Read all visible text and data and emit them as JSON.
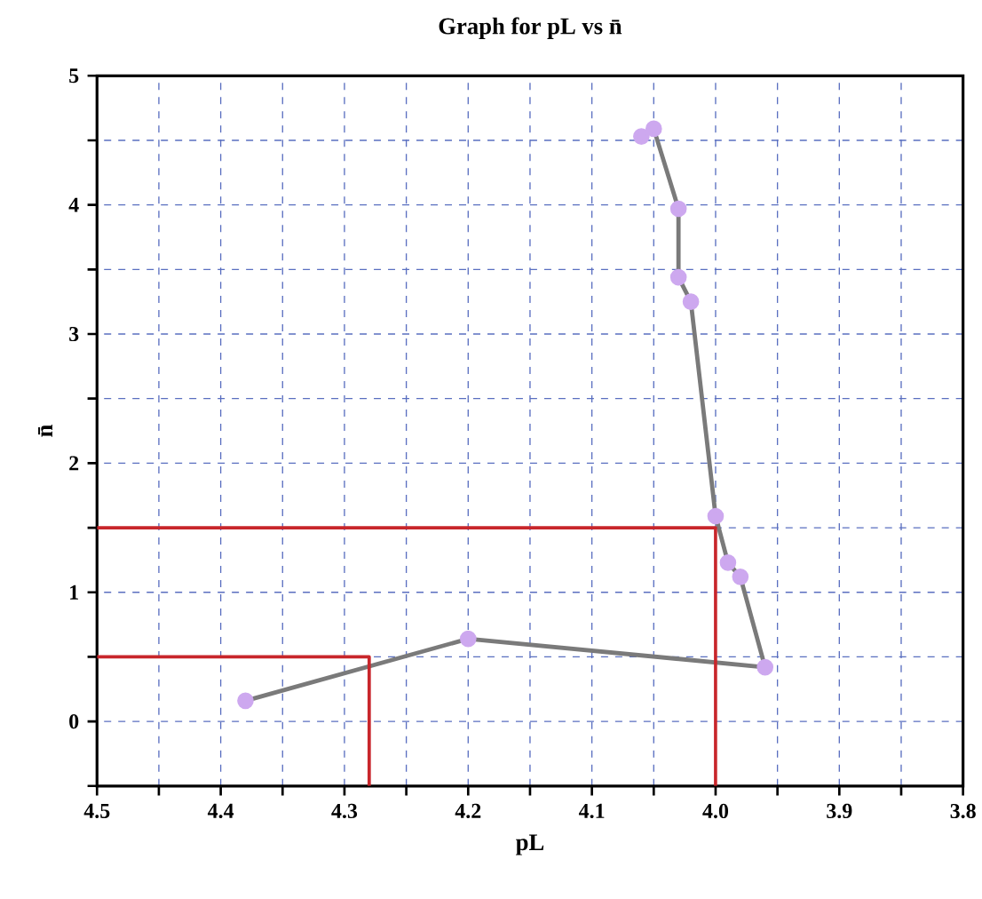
{
  "chart_data": {
    "type": "line",
    "title": "Graph for pL vs n̄",
    "xlabel": "pL",
    "ylabel": "n̄",
    "xlim": [
      4.5,
      3.8
    ],
    "ylim": [
      -0.5,
      5
    ],
    "xticks": [
      4.5,
      {
        "value": 4.45,
        "label": null
      },
      4.4,
      {
        "value": 4.35,
        "label": null
      },
      4.3,
      {
        "value": 4.25,
        "label": null
      },
      4.2,
      {
        "value": 4.15,
        "label": null
      },
      4.1,
      {
        "value": 4.05,
        "label": null
      },
      {
        "value": 4.0,
        "label": "4.0"
      },
      {
        "value": 3.95,
        "label": null
      },
      3.9,
      {
        "value": 3.85,
        "label": null
      },
      3.8
    ],
    "yticks": [
      {
        "value": -0.5,
        "label": null
      },
      0,
      {
        "value": 0.5,
        "label": null
      },
      1,
      {
        "value": 1.5,
        "label": null
      },
      2,
      {
        "value": 2.5,
        "label": null
      },
      3,
      {
        "value": 3.5,
        "label": null
      },
      4,
      {
        "value": 4.5,
        "label": null
      },
      5
    ],
    "grid": true,
    "series": [
      {
        "color": "#7a7a7a",
        "marker": "circle",
        "x": [
          4.38,
          4.2,
          3.96,
          3.98,
          3.99,
          4.0,
          4.02,
          4.03,
          4.03,
          4.05,
          4.06
        ],
        "values": [
          0.16,
          0.64,
          0.42,
          1.12,
          1.23,
          1.59,
          3.25,
          3.44,
          3.97,
          4.59,
          4.53
        ]
      },
      {
        "color": "#c8262b",
        "marker": "none",
        "x": [
          4.5,
          4.0,
          4.0
        ],
        "values": [
          1.5,
          1.5,
          -0.5
        ]
      },
      {
        "color": "#c8262b",
        "marker": "none",
        "x": [
          4.5,
          4.28,
          4.28
        ],
        "values": [
          0.5,
          0.5,
          -0.5
        ]
      }
    ]
  }
}
